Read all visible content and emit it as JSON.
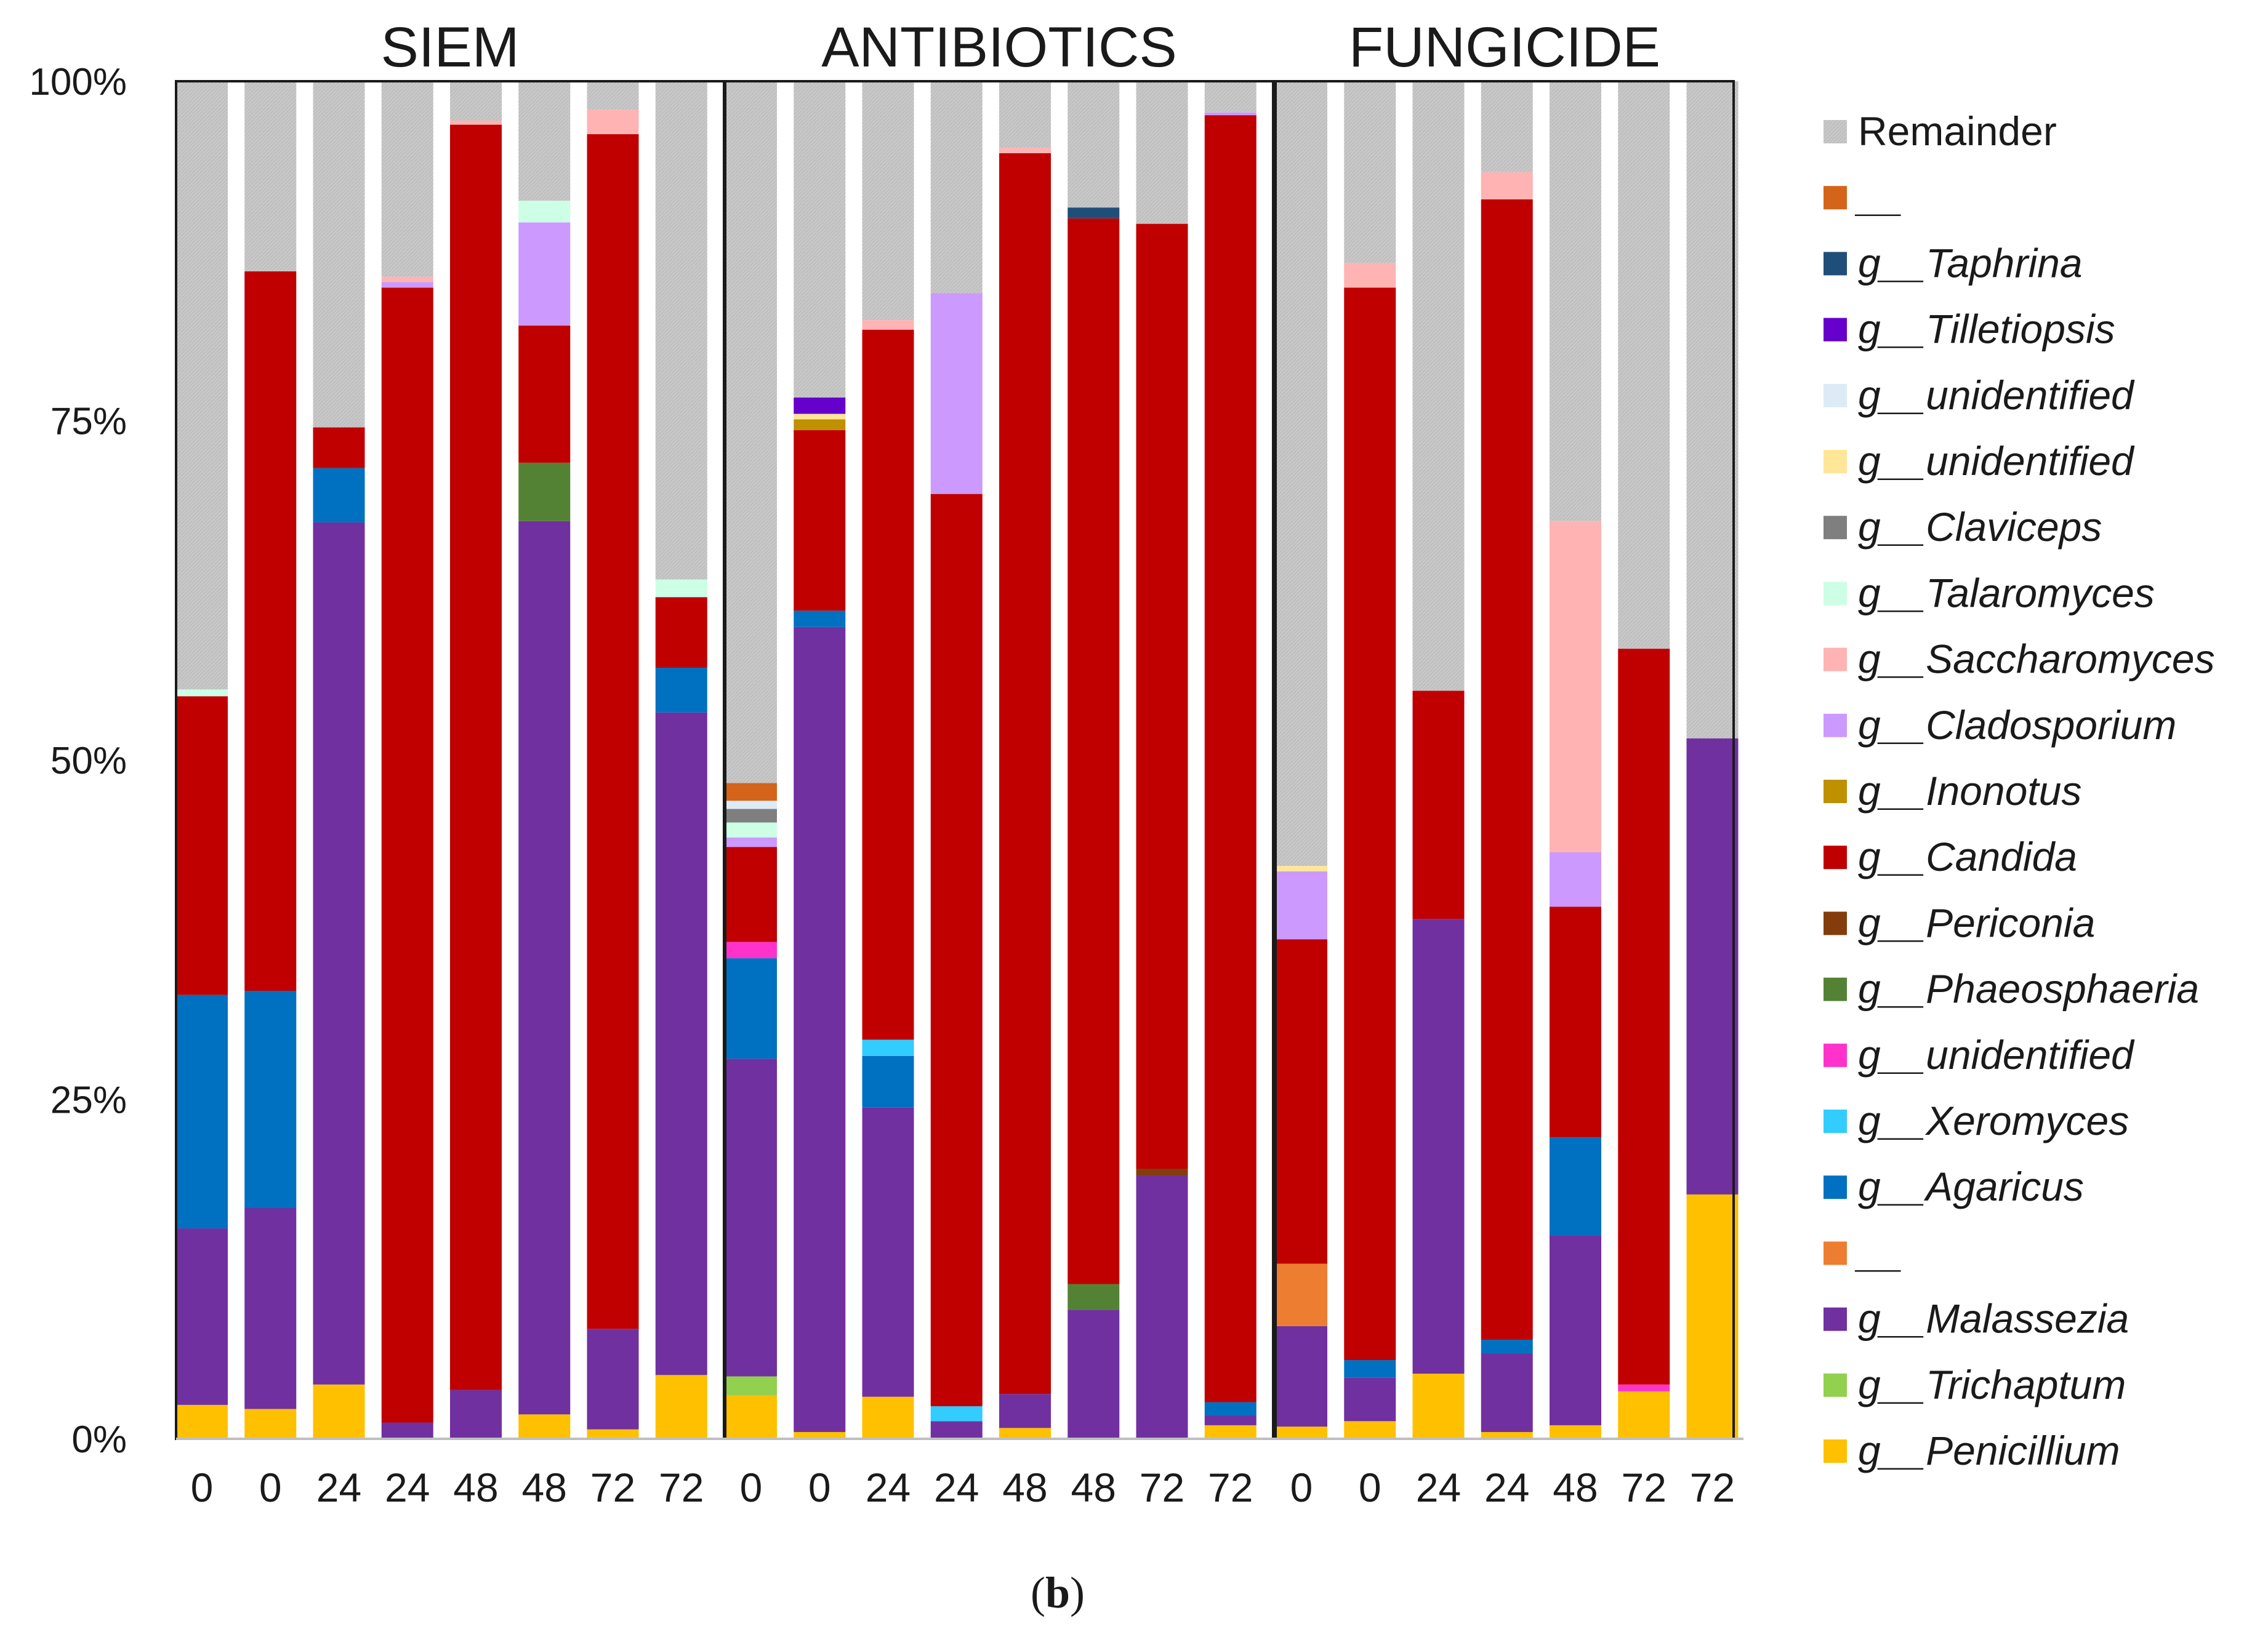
{
  "chart_data": {
    "type": "bar",
    "stacked": true,
    "percent": true,
    "caption": {
      "open": "(",
      "letter": "b",
      "close": ")"
    },
    "y_ticks": [
      "0%",
      "25%",
      "50%",
      "75%",
      "100%"
    ],
    "ylim": [
      0,
      100
    ],
    "colors": {
      "Penicillium": "#FFC000",
      "Trichaptum": "#92D050",
      "Malassezia": "#7030A0",
      "blank2": "#ED7D31",
      "Agaricus": "#0070C0",
      "Xeromyces": "#33CCFF",
      "unidentified1": "#FF33CC",
      "Phaeosphaeria": "#548235",
      "Periconia": "#843C0C",
      "Candida": "#C00000",
      "Inonotus": "#BF9000",
      "Cladosporium": "#CC99FF",
      "Saccharomyces": "#FFB3B3",
      "Talaromyces": "#CCFFE6",
      "Claviceps": "#7F7F7F",
      "unidentified2": "#FFE699",
      "unidentified3": "#DDEBF7",
      "Tilletiopsis": "#6600CC",
      "Taphrina": "#1F4E79",
      "blank1": "#D4641A",
      "Remainder": "#C8C8C8"
    },
    "legend": [
      {
        "key": "Remainder",
        "prefix": "",
        "label": "Remainder"
      },
      {
        "key": "blank1",
        "prefix": "",
        "label": "__"
      },
      {
        "key": "Taphrina",
        "prefix": "g__",
        "label": "Taphrina"
      },
      {
        "key": "Tilletiopsis",
        "prefix": "g__",
        "label": "Tilletiopsis"
      },
      {
        "key": "unidentified3",
        "prefix": "g__",
        "label": "unidentified"
      },
      {
        "key": "unidentified2",
        "prefix": "g__",
        "label": "unidentified"
      },
      {
        "key": "Claviceps",
        "prefix": "g__",
        "label": "Claviceps"
      },
      {
        "key": "Talaromyces",
        "prefix": "g__",
        "label": "Talaromyces"
      },
      {
        "key": "Saccharomyces",
        "prefix": "g__",
        "label": "Saccharomyces"
      },
      {
        "key": "Cladosporium",
        "prefix": "g__",
        "label": "Cladosporium"
      },
      {
        "key": "Inonotus",
        "prefix": "g__",
        "label": "Inonotus"
      },
      {
        "key": "Candida",
        "prefix": "g__",
        "label": "Candida"
      },
      {
        "key": "Periconia",
        "prefix": "g__",
        "label": "Periconia"
      },
      {
        "key": "Phaeosphaeria",
        "prefix": "g__",
        "label": "Phaeosphaeria"
      },
      {
        "key": "unidentified1",
        "prefix": "g__",
        "label": "unidentified"
      },
      {
        "key": "Xeromyces",
        "prefix": "g__",
        "label": "Xeromyces"
      },
      {
        "key": "Agaricus",
        "prefix": "g__",
        "label": "Agaricus"
      },
      {
        "key": "blank2",
        "prefix": "",
        "label": "__"
      },
      {
        "key": "Malassezia",
        "prefix": "g__",
        "label": "Malassezia"
      },
      {
        "key": "Trichaptum",
        "prefix": "g__",
        "label": "Trichaptum"
      },
      {
        "key": "Penicillium",
        "prefix": "g__",
        "label": "Penicillium"
      }
    ],
    "panels": [
      {
        "title": "SIEM",
        "bars": [
          {
            "label": "0",
            "segments": {
              "Penicillium": 2.5,
              "Malassezia": 13.0,
              "Agaricus": 17.2,
              "Candida": 22.0,
              "Talaromyces": 0.5,
              "Remainder": 44.8
            }
          },
          {
            "label": "0",
            "segments": {
              "Penicillium": 2.2,
              "Malassezia": 14.8,
              "Agaricus": 16.0,
              "Candida": 53.0,
              "Remainder": 14.0
            }
          },
          {
            "label": "24",
            "segments": {
              "Penicillium": 4.0,
              "Malassezia": 63.5,
              "Agaricus": 4.0,
              "Candida": 3.0,
              "Remainder": 25.5
            }
          },
          {
            "label": "24",
            "segments": {
              "Malassezia": 1.2,
              "Candida": 83.6,
              "Cladosporium": 0.4,
              "Saccharomyces": 0.4,
              "Remainder": 14.4
            }
          },
          {
            "label": "48",
            "segments": {
              "Malassezia": 3.6,
              "Candida": 93.2,
              "Saccharomyces": 0.3,
              "Remainder": 2.9
            }
          },
          {
            "label": "48",
            "segments": {
              "Penicillium": 1.8,
              "Malassezia": 65.8,
              "Phaeosphaeria": 4.3,
              "Candida": 10.1,
              "Cladosporium": 7.6,
              "Talaromyces": 1.6,
              "Remainder": 8.8
            }
          },
          {
            "label": "72",
            "segments": {
              "Penicillium": 0.7,
              "Malassezia": 7.4,
              "Candida": 88.0,
              "Saccharomyces": 1.8,
              "Remainder": 2.1
            }
          },
          {
            "label": "72",
            "segments": {
              "Penicillium": 4.7,
              "Malassezia": 48.8,
              "Agaricus": 3.3,
              "Candida": 5.2,
              "Talaromyces": 1.3,
              "Remainder": 36.7
            }
          }
        ]
      },
      {
        "title": "ANTIBIOTICS",
        "bars": [
          {
            "label": "0",
            "segments": {
              "Penicillium": 3.2,
              "Trichaptum": 1.4,
              "Malassezia": 23.4,
              "Agaricus": 7.4,
              "unidentified1": 1.2,
              "Candida": 7.0,
              "Cladosporium": 0.7,
              "Talaromyces": 1.1,
              "Claviceps": 1.0,
              "unidentified3": 0.6,
              "blank1": 1.3,
              "Remainder": 51.7
            }
          },
          {
            "label": "0",
            "segments": {
              "Penicillium": 0.5,
              "Malassezia": 59.3,
              "Agaricus": 1.2,
              "Candida": 13.3,
              "Inonotus": 0.8,
              "unidentified2": 0.4,
              "Tilletiopsis": 1.2,
              "Remainder": 23.3
            }
          },
          {
            "label": "24",
            "segments": {
              "Penicillium": 3.1,
              "Malassezia": 21.3,
              "Agaricus": 3.8,
              "Xeromyces": 1.2,
              "Candida": 52.3,
              "Saccharomyces": 0.7,
              "Remainder": 17.6
            }
          },
          {
            "label": "24",
            "segments": {
              "Malassezia": 1.3,
              "Xeromyces": 1.1,
              "Candida": 67.2,
              "Cladosporium": 14.8,
              "Remainder": 15.6
            }
          },
          {
            "label": "48",
            "segments": {
              "Penicillium": 0.8,
              "Malassezia": 2.5,
              "Candida": 91.4,
              "Saccharomyces": 0.4,
              "Remainder": 4.9
            }
          },
          {
            "label": "48",
            "segments": {
              "Malassezia": 9.5,
              "Phaeosphaeria": 1.9,
              "Candida": 78.5,
              "Taphrina": 0.8,
              "Remainder": 9.3
            }
          },
          {
            "label": "72",
            "segments": {
              "Malassezia": 19.4,
              "Periconia": 0.5,
              "Candida": 69.6,
              "Remainder": 10.5
            }
          },
          {
            "label": "72",
            "segments": {
              "Penicillium": 1.0,
              "Malassezia": 0.7,
              "Agaricus": 1.0,
              "Candida": 94.8,
              "Cladosporium": 0.2,
              "Remainder": 2.3
            }
          }
        ]
      },
      {
        "title": "FUNGICIDE",
        "bars": [
          {
            "label": "0",
            "segments": {
              "Penicillium": 0.9,
              "Malassezia": 7.4,
              "blank2": 4.6,
              "Candida": 23.9,
              "Cladosporium": 5.0,
              "unidentified2": 0.4,
              "Remainder": 57.8
            }
          },
          {
            "label": "0",
            "segments": {
              "Penicillium": 1.3,
              "Malassezia": 3.2,
              "Agaricus": 1.3,
              "Candida": 79.0,
              "Saccharomyces": 1.8,
              "Remainder": 13.4
            }
          },
          {
            "label": "24",
            "segments": {
              "Penicillium": 4.8,
              "Malassezia": 33.5,
              "Candida": 16.8,
              "Remainder": 44.9
            }
          },
          {
            "label": "24",
            "segments": {
              "Penicillium": 0.5,
              "Malassezia": 5.8,
              "Agaricus": 1.0,
              "Candida": 84.0,
              "Saccharomyces": 2.0,
              "Remainder": 6.7
            }
          },
          {
            "label": "48",
            "segments": {
              "Penicillium": 1.0,
              "Malassezia": 14.0,
              "Agaricus": 7.2,
              "Candida": 17.0,
              "Cladosporium": 4.0,
              "Saccharomyces": 24.4,
              "Remainder": 32.4
            }
          },
          {
            "label": "72",
            "segments": {
              "Penicillium": 3.5,
              "unidentified1": 0.5,
              "Candida": 54.2,
              "Remainder": 41.8
            }
          },
          {
            "label": "72",
            "segments": {
              "Penicillium": 18.0,
              "Malassezia": 33.6,
              "Remainder": 48.4
            }
          }
        ]
      }
    ]
  }
}
